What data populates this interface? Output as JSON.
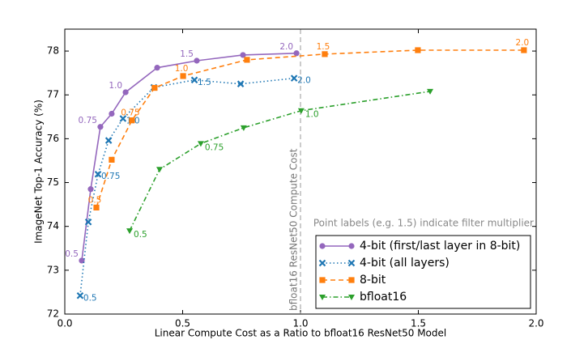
{
  "chart_data": {
    "type": "line",
    "xlabel": "Linear Compute Cost as a Ratio to bfloat16 ResNet50 Model",
    "ylabel": "ImageNet Top-1 Accuracy (%)",
    "xlim": [
      0,
      2.0
    ],
    "ylim": [
      72,
      78.5
    ],
    "xticks": [
      {
        "value": 0,
        "label": "0.0"
      },
      0.5,
      {
        "value": 1.0,
        "label": "1.0"
      },
      1.5,
      {
        "value": 2.0,
        "label": "2.0"
      }
    ],
    "yticks": [
      72,
      73,
      74,
      75,
      76,
      77,
      78
    ],
    "vline": {
      "x": 1.0,
      "label": "bfloat16 ResNet50 Compute Cost"
    },
    "annotation": "Point labels (e.g. 1.5) indicate filter multiplier",
    "legend": "lower right",
    "series": [
      {
        "name": "4-bit (first/last layer in 8-bit)",
        "color": "#9467bd",
        "marker": "circle",
        "dash": "solid",
        "x": [
          0.072,
          0.11,
          0.151,
          0.199,
          0.258,
          0.392,
          0.56,
          0.756,
          0.983
        ],
        "values": [
          73.22,
          74.85,
          76.27,
          76.57,
          77.06,
          77.62,
          77.78,
          77.91,
          77.95
        ],
        "point_labels": [
          "0.5",
          null,
          "0.75",
          null,
          "1.0",
          null,
          "1.5",
          null,
          "2.0"
        ]
      },
      {
        "name": "4-bit (all layers)",
        "color": "#1f77b4",
        "marker": "x",
        "dash": "dotted",
        "x": [
          0.065,
          0.1,
          0.141,
          0.186,
          0.247,
          0.378,
          0.55,
          0.746,
          0.973
        ],
        "values": [
          72.42,
          74.1,
          75.19,
          75.96,
          76.46,
          77.17,
          77.34,
          77.25,
          77.38
        ],
        "point_labels": [
          "0.5",
          null,
          "0.75",
          null,
          "1.0",
          null,
          "1.5",
          null,
          "2.0"
        ]
      },
      {
        "name": "8-bit",
        "color": "#ff7f0e",
        "marker": "square",
        "dash": "dashed",
        "x": [
          0.134,
          0.199,
          0.285,
          0.381,
          0.502,
          0.773,
          1.103,
          1.498,
          1.948
        ],
        "values": [
          74.43,
          75.52,
          76.42,
          77.16,
          77.43,
          77.8,
          77.93,
          78.02,
          78.02
        ],
        "point_labels": [
          "0.5",
          null,
          "0.75",
          null,
          "1.0",
          null,
          "1.5",
          null,
          "2.0"
        ]
      },
      {
        "name": "bfloat16",
        "color": "#2ca02c",
        "marker": "triangle",
        "dash": "dashdot",
        "x": [
          0.275,
          0.402,
          0.577,
          0.759,
          1.003,
          1.55
        ],
        "values": [
          73.9,
          75.3,
          75.89,
          76.25,
          76.64,
          77.08
        ],
        "point_labels": [
          "0.5",
          null,
          "0.75",
          null,
          "1.0",
          null
        ]
      }
    ]
  }
}
